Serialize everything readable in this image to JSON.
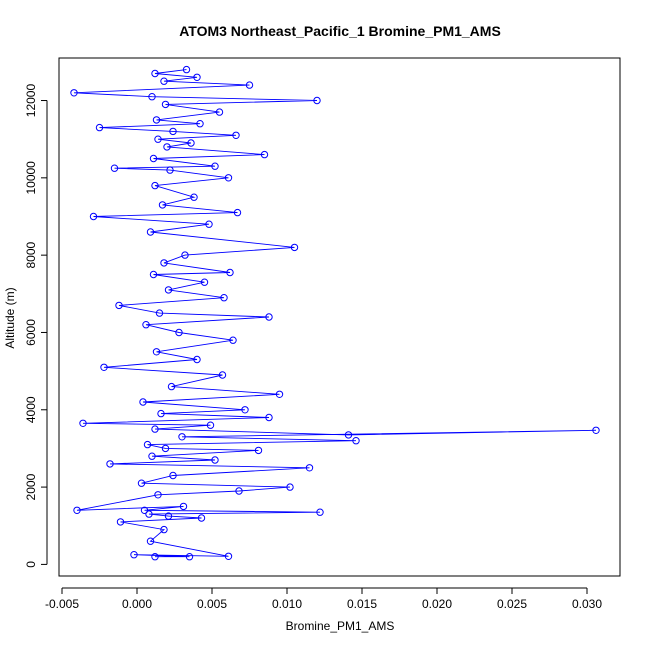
{
  "chart_data": {
    "type": "scatter",
    "title": "ATOM3 Northeast_Pacific_1 Bromine_PM1_AMS",
    "xlabel": "Bromine_PM1_AMS",
    "ylabel": "Altitude (m)",
    "xlim": [
      -0.0052,
      0.0322
    ],
    "ylim": [
      -300,
      13100
    ],
    "x_ticks": [
      -0.005,
      0.0,
      0.005,
      0.01,
      0.015,
      0.02,
      0.025,
      0.03
    ],
    "x_tick_labels": [
      "-0.005",
      "0.000",
      "0.005",
      "0.010",
      "0.015",
      "0.020",
      "0.025",
      "0.030"
    ],
    "y_ticks": [
      0,
      2000,
      4000,
      6000,
      8000,
      10000,
      12000
    ],
    "y_tick_labels": [
      "0",
      "2000",
      "4000",
      "6000",
      "8000",
      "10000",
      "12000"
    ],
    "grid": false,
    "legend": "none",
    "marker": "open-circle",
    "connected_line": true,
    "series_color": "#0000ff",
    "series": [
      {
        "x": [
          0.0012,
          0.0035,
          -0.0002,
          0.0061,
          0.0009,
          0.0018,
          -0.0011,
          0.0043,
          0.0021,
          0.0008,
          0.0122,
          0.0005,
          0.0031,
          -0.004,
          0.0014,
          0.0068,
          0.0102,
          0.0003,
          0.0024,
          0.0115,
          -0.0018,
          0.0052,
          0.001,
          0.0081,
          0.0019,
          0.0007,
          0.0146,
          0.003,
          0.0306,
          0.0141,
          0.0012,
          0.0049,
          -0.0036,
          0.0088,
          0.0016,
          0.0072,
          0.0004,
          0.0095,
          0.0023,
          0.0057,
          -0.0022,
          0.004,
          0.0013,
          0.0064,
          0.0028,
          0.0006,
          0.0088,
          0.0015,
          -0.0012,
          0.0058,
          0.0021,
          0.0045,
          0.0011,
          0.0062,
          0.0018,
          0.0032,
          0.0105,
          0.0009,
          0.0048,
          -0.0029,
          0.0067,
          0.0017,
          0.0038,
          0.0012,
          0.0061,
          0.0022,
          -0.0015,
          0.0052,
          0.0011,
          0.0085,
          0.002,
          0.0036,
          0.0014,
          0.0066,
          0.0024,
          -0.0025,
          0.0042,
          0.0013,
          0.0055,
          0.0019,
          0.012,
          0.001,
          -0.0042,
          0.0075,
          0.0018,
          0.004,
          0.0012,
          0.0033
        ],
        "y": [
          200,
          200,
          250,
          210,
          600,
          900,
          1100,
          1200,
          1250,
          1300,
          1350,
          1400,
          1500,
          1400,
          1800,
          1900,
          2000,
          2100,
          2300,
          2500,
          2600,
          2700,
          2800,
          2950,
          3000,
          3100,
          3200,
          3300,
          3470,
          3350,
          3500,
          3600,
          3650,
          3800,
          3900,
          4000,
          4200,
          4400,
          4600,
          4900,
          5100,
          5300,
          5500,
          5800,
          6000,
          6200,
          6400,
          6500,
          6700,
          6900,
          7100,
          7300,
          7500,
          7550,
          7800,
          8000,
          8200,
          8600,
          8800,
          9000,
          9100,
          9300,
          9500,
          9800,
          10000,
          10200,
          10250,
          10300,
          10500,
          10600,
          10800,
          10900,
          11000,
          11100,
          11200,
          11300,
          11400,
          11500,
          11700,
          11900,
          12000,
          12100,
          12200,
          12400,
          12500,
          12600,
          12700,
          12800
        ]
      }
    ]
  }
}
